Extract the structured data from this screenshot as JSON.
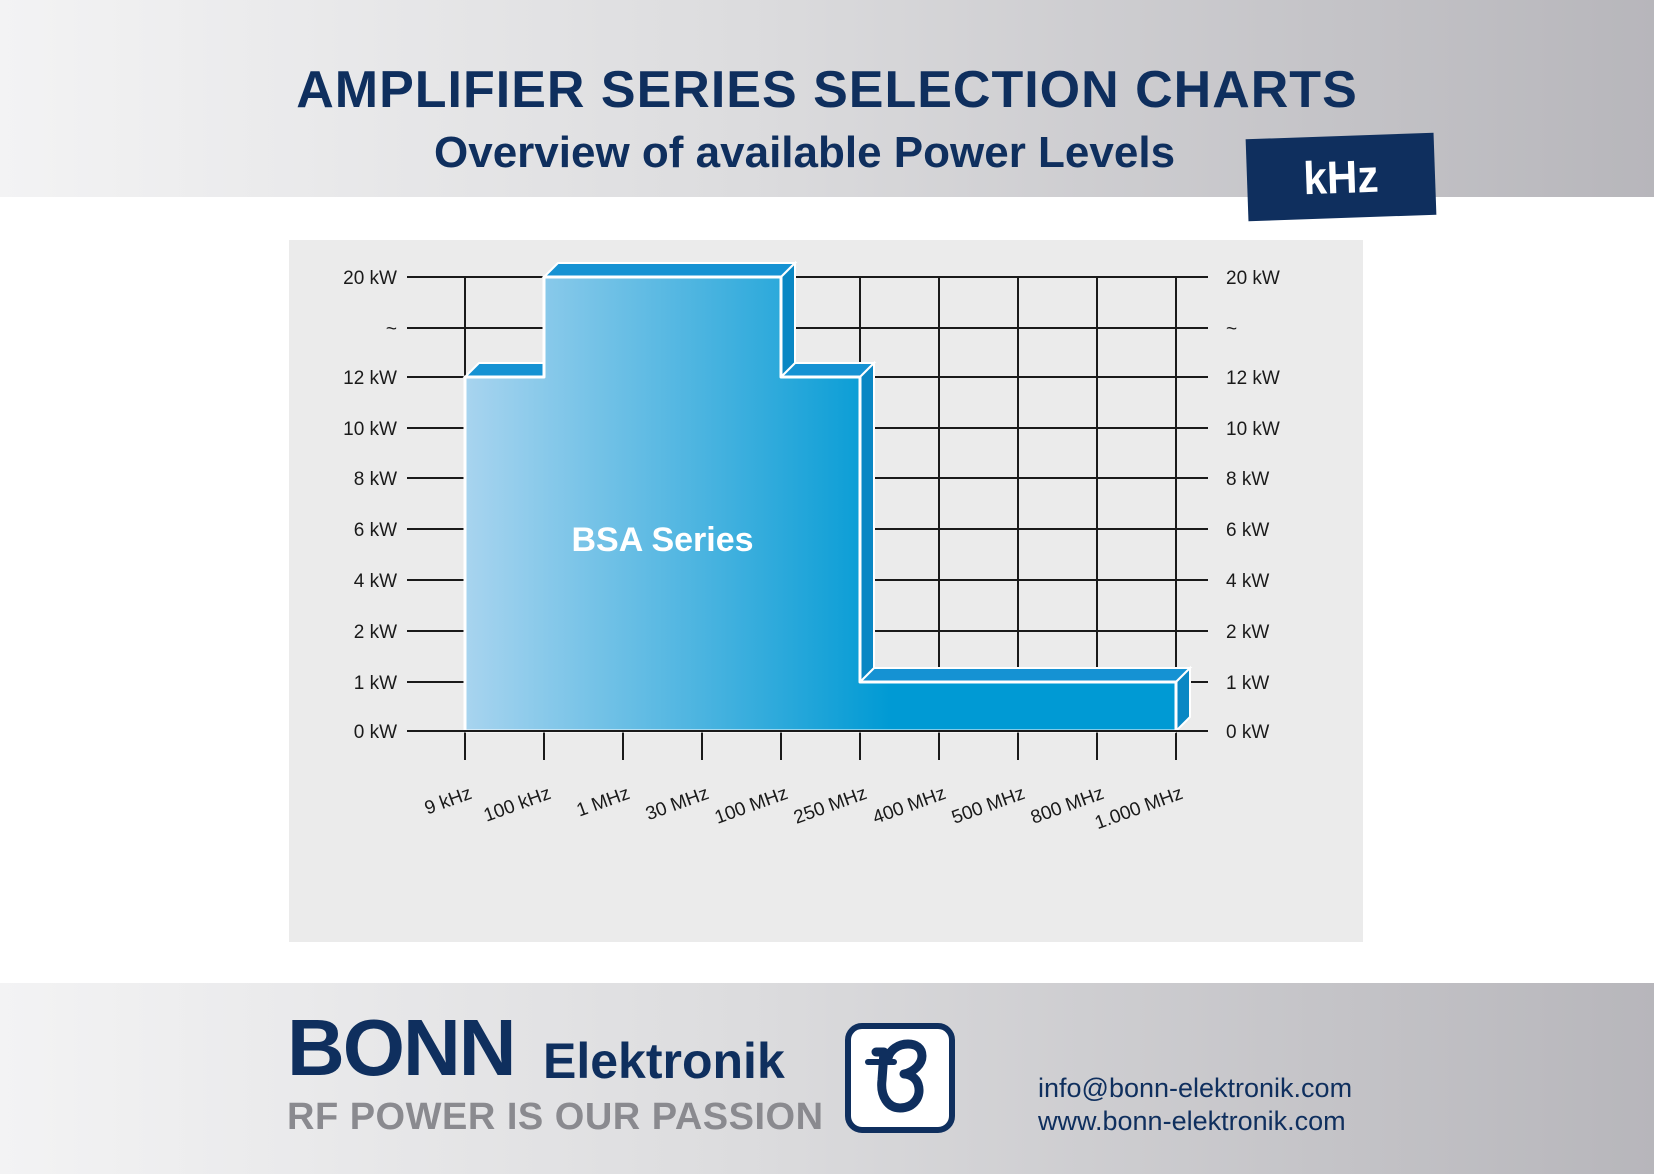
{
  "header": {
    "title": "AMPLIFIER SERIES SELECTION CHARTS",
    "subtitle": "Overview of available Power Levels",
    "badge": "kHz"
  },
  "colors": {
    "navy": "#0f2f5e",
    "series_light": "#a8d4ef",
    "series_dark": "#009ad4",
    "series_side": "#0a87c4",
    "series_top": "#1592d3",
    "grid": "#1a1a1a"
  },
  "chart_data": {
    "type": "area",
    "y_tick_labels": [
      "0 kW",
      "1 kW",
      "2 kW",
      "4 kW",
      "6 kW",
      "8 kW",
      "10 kW",
      "12 kW",
      "~",
      "20 kW"
    ],
    "x_tick_labels": [
      "9 kHz",
      "100 kHz",
      "1 MHz",
      "30 MHz",
      "100 MHz",
      "250 MHz",
      "400 MHz",
      "500 MHz",
      "800 MHz",
      "1.000 MHz"
    ],
    "series": [
      {
        "name": "BSA Series",
        "points": [
          {
            "x": "9 kHz",
            "y": "12 kW"
          },
          {
            "x": "100 kHz",
            "y": "12 kW"
          },
          {
            "x": "100 kHz",
            "y": "20 kW"
          },
          {
            "x": "100 MHz",
            "y": "20 kW"
          },
          {
            "x": "100 MHz",
            "y": "12 kW"
          },
          {
            "x": "250 MHz",
            "y": "12 kW"
          },
          {
            "x": "250 MHz",
            "y": "1 kW"
          },
          {
            "x": "1.000 MHz",
            "y": "1 kW"
          }
        ]
      }
    ],
    "grid": true,
    "y_axis_both_sides": true,
    "x_labels_rotation_deg": -20
  },
  "footer": {
    "brand_main": "BONN",
    "brand_sub": "Elektronik",
    "tagline": "RF POWER IS OUR PASSION",
    "email": "info@bonn-elektronik.com",
    "website": "www.bonn-elektronik.com"
  }
}
